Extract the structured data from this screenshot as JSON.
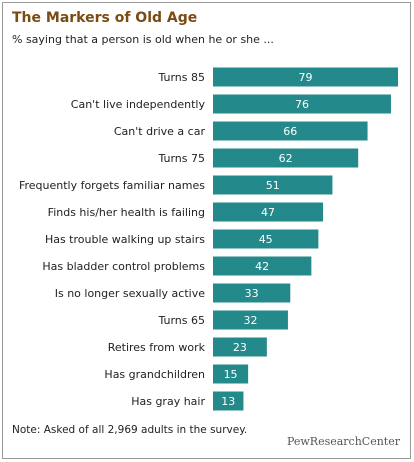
{
  "chart_data": {
    "type": "bar",
    "orientation": "horizontal",
    "title": "The Markers of Old Age",
    "subtitle": "% saying that a person is old when he or she ...",
    "categories": [
      "Turns 85",
      "Can't live independently",
      "Can't drive a car",
      "Turns 75",
      "Frequently forgets familiar names",
      "Finds his/her health is failing",
      "Has trouble walking up stairs",
      "Has bladder control problems",
      "Is no longer sexually active",
      "Turns 65",
      "Retires from work",
      "Has grandchildren",
      "Has gray hair"
    ],
    "values": [
      79,
      76,
      66,
      62,
      51,
      47,
      45,
      42,
      33,
      32,
      23,
      15,
      13
    ],
    "color": "#24898a",
    "note": "Note: Asked of all 2,969 adults in the survey.",
    "source": "PewResearchCenter"
  }
}
